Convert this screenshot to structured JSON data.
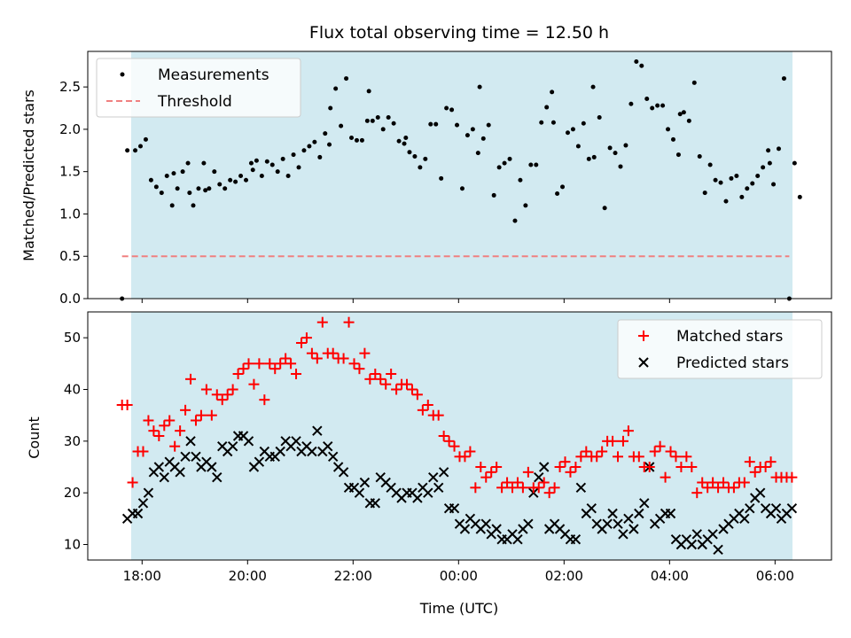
{
  "chart_data": [
    {
      "type": "scatter",
      "title": "Flux total observing time = 12.50 h",
      "xlabel": "",
      "ylabel": "Matched/Predicted stars",
      "x_unit": "hours since 2024-01-01 00:00 UTC",
      "ylim": [
        0,
        2.92
      ],
      "y_ticks": [
        "0.0",
        "0.5",
        "1.0",
        "1.5",
        "2.0",
        "2.5"
      ],
      "shaded_span": {
        "start": "17:45",
        "end": "06:15",
        "color": "#add8e6"
      },
      "legend": {
        "position": "top-left",
        "entries": [
          "Measurements",
          "Threshold"
        ]
      },
      "series": [
        {
          "name": "Measurements",
          "color": "#000000",
          "x": [
            17.62,
            17.72,
            17.87,
            17.97,
            18.07,
            18.17,
            18.27,
            18.37,
            18.47,
            18.57,
            18.67,
            18.77,
            18.87,
            18.97,
            19.07,
            19.17,
            19.27,
            19.37,
            19.47,
            19.57,
            19.67,
            19.77,
            19.87,
            19.97,
            20.07,
            20.17,
            20.27,
            20.37,
            20.47,
            20.57,
            20.67,
            20.77,
            20.87,
            20.97,
            21.07,
            21.17,
            21.27,
            21.37,
            21.47,
            21.57,
            21.67,
            21.77,
            21.87,
            21.97,
            22.07,
            22.17,
            22.27,
            22.37,
            22.47,
            22.57,
            22.67,
            22.77,
            22.87,
            22.97,
            23.07,
            23.17,
            23.27,
            23.37,
            23.47,
            23.57,
            23.67,
            23.77,
            23.87,
            23.97,
            24.07,
            24.17,
            24.27,
            24.37,
            24.47,
            24.57,
            24.67,
            24.77,
            24.87,
            24.97,
            25.07,
            25.17,
            25.27,
            25.37,
            25.47,
            25.57,
            25.67,
            25.77,
            25.87,
            25.97,
            26.07,
            26.17,
            26.27,
            26.37,
            26.47,
            26.57,
            26.67,
            26.77,
            26.87,
            26.97,
            27.07,
            27.17,
            27.27,
            27.37,
            27.47,
            27.57,
            27.67,
            27.77,
            27.87,
            27.97,
            28.07,
            28.17,
            28.27,
            28.37,
            28.47,
            28.57,
            28.67,
            28.77,
            28.87,
            28.97,
            29.07,
            29.17,
            29.27,
            29.37,
            29.47,
            29.57,
            29.67,
            29.77,
            29.87,
            29.97,
            30.07,
            30.17,
            30.27,
            30.37,
            30.47
          ],
          "y": [
            0.0,
            1.75,
            1.75,
            1.8,
            1.88,
            1.4,
            1.32,
            1.25,
            1.45,
            1.1,
            1.3,
            1.5,
            1.6,
            1.1,
            1.3,
            1.6,
            1.3,
            1.5,
            1.35,
            1.3,
            1.4,
            1.38,
            1.45,
            1.4,
            1.6,
            1.63,
            1.45,
            1.62,
            1.58,
            1.5,
            1.65,
            1.45,
            1.7,
            1.55,
            1.75,
            1.8,
            1.85,
            1.67,
            1.95,
            2.25,
            2.48,
            2.04,
            2.6,
            1.9,
            1.87,
            1.87,
            2.1,
            2.1,
            2.14,
            2.0,
            2.14,
            2.07,
            1.86,
            1.83,
            1.73,
            1.68,
            1.55,
            1.65,
            2.06,
            2.06,
            1.42,
            2.25,
            2.23,
            2.05,
            1.3,
            1.93,
            2.0,
            1.72,
            1.89,
            2.05,
            1.22,
            1.55,
            1.6,
            1.65,
            0.92,
            1.4,
            1.1,
            1.58,
            1.58,
            2.08,
            2.26,
            2.44,
            1.24,
            1.32,
            1.96,
            2.0,
            1.8,
            2.07,
            1.65,
            1.67,
            2.14,
            1.07,
            1.78,
            1.72,
            1.56,
            1.81,
            2.3,
            2.8,
            2.75,
            2.36,
            2.25,
            2.28,
            2.28,
            2.0,
            1.88,
            1.7,
            2.2,
            2.1,
            2.55,
            1.68,
            1.25,
            1.58,
            1.4,
            1.37,
            1.15,
            1.42,
            1.45,
            1.2,
            1.3,
            1.36,
            1.45,
            1.55,
            1.75,
            1.35,
            1.77,
            2.6,
            0.0,
            1.6,
            1.2
          ],
          "extra_points": [
            {
              "x": 18.6,
              "y": 1.48
            },
            {
              "x": 18.9,
              "y": 1.25
            },
            {
              "x": 19.2,
              "y": 1.28
            },
            {
              "x": 20.1,
              "y": 1.52
            },
            {
              "x": 21.55,
              "y": 1.82
            },
            {
              "x": 22.3,
              "y": 2.45
            },
            {
              "x": 23.0,
              "y": 1.9
            },
            {
              "x": 24.4,
              "y": 2.5
            },
            {
              "x": 25.8,
              "y": 2.08
            },
            {
              "x": 26.55,
              "y": 2.5
            },
            {
              "x": 28.2,
              "y": 2.18
            },
            {
              "x": 29.9,
              "y": 1.6
            }
          ]
        },
        {
          "name": "Threshold",
          "color": "#f08080",
          "style": "dashed",
          "x": [
            17.62,
            30.27
          ],
          "y": [
            0.5,
            0.5
          ]
        }
      ]
    },
    {
      "type": "scatter",
      "title": "",
      "xlabel": "Time (UTC)",
      "ylabel": "Count",
      "x_unit": "hours since 2024-01-01 00:00 UTC",
      "xlim": [
        16.97,
        31.07
      ],
      "x_ticks": [
        {
          "x": 18,
          "label": "18:00"
        },
        {
          "x": 20,
          "label": "20:00"
        },
        {
          "x": 22,
          "label": "22:00"
        },
        {
          "x": 24,
          "label": "00:00"
        },
        {
          "x": 26,
          "label": "02:00"
        },
        {
          "x": 28,
          "label": "04:00"
        },
        {
          "x": 30,
          "label": "06:00"
        }
      ],
      "ylim": [
        7,
        55
      ],
      "y_ticks": [
        "10",
        "20",
        "30",
        "40",
        "50"
      ],
      "shaded_span": {
        "start": "17:45",
        "end": "06:15",
        "color": "#add8e6"
      },
      "legend": {
        "position": "top-right",
        "entries": [
          "Matched stars",
          "Predicted stars"
        ]
      },
      "series": [
        {
          "name": "Matched stars",
          "color": "#ff0000",
          "marker": "+",
          "x": [
            17.62,
            17.72,
            17.82,
            17.92,
            18.02,
            18.12,
            18.22,
            18.32,
            18.42,
            18.52,
            18.62,
            18.72,
            18.82,
            18.92,
            19.02,
            19.12,
            19.22,
            19.32,
            19.42,
            19.52,
            19.62,
            19.72,
            19.82,
            19.92,
            20.02,
            20.12,
            20.22,
            20.32,
            20.42,
            20.52,
            20.62,
            20.72,
            20.82,
            20.92,
            21.02,
            21.12,
            21.22,
            21.32,
            21.42,
            21.52,
            21.62,
            21.72,
            21.82,
            21.92,
            22.02,
            22.12,
            22.22,
            22.32,
            22.42,
            22.52,
            22.62,
            22.72,
            22.82,
            22.92,
            23.02,
            23.12,
            23.22,
            23.32,
            23.42,
            23.52,
            23.62,
            23.72,
            23.82,
            23.92,
            24.02,
            24.12,
            24.22,
            24.32,
            24.42,
            24.52,
            24.62,
            24.72,
            24.82,
            24.92,
            25.02,
            25.12,
            25.22,
            25.32,
            25.42,
            25.52,
            25.62,
            25.72,
            25.82,
            25.92,
            26.02,
            26.12,
            26.22,
            26.32,
            26.42,
            26.52,
            26.62,
            26.72,
            26.82,
            26.92,
            27.02,
            27.12,
            27.22,
            27.32,
            27.42,
            27.52,
            27.62,
            27.72,
            27.82,
            27.92,
            28.02,
            28.12,
            28.22,
            28.32,
            28.42,
            28.52,
            28.62,
            28.72,
            28.82,
            28.92,
            29.02,
            29.12,
            29.22,
            29.32,
            29.42,
            29.52,
            29.62,
            29.72,
            29.82,
            29.92,
            30.02,
            30.12,
            30.22,
            30.32
          ],
          "y": [
            37,
            37,
            22,
            28,
            28,
            34,
            32,
            31,
            33,
            34,
            29,
            32,
            36,
            42,
            34,
            35,
            40,
            35,
            39,
            38,
            39,
            40,
            43,
            44,
            45,
            41,
            45,
            38,
            45,
            44,
            45,
            46,
            45,
            43,
            49,
            50,
            47,
            46,
            53,
            47,
            47,
            46,
            46,
            53,
            45,
            44,
            47,
            42,
            43,
            42,
            41,
            43,
            40,
            41,
            41,
            40,
            39,
            36,
            37,
            35,
            35,
            31,
            30,
            29,
            27,
            27,
            28,
            21,
            25,
            23,
            24,
            25,
            21,
            22,
            21,
            22,
            21,
            24,
            21,
            21,
            22,
            20,
            21,
            25,
            26,
            24,
            25,
            27,
            28,
            27,
            27,
            28,
            30,
            30,
            27,
            30,
            32,
            27,
            27,
            25,
            25,
            28,
            29,
            23,
            28,
            27,
            25,
            27,
            25,
            20,
            22,
            21,
            22,
            21,
            22,
            21,
            21,
            22,
            22,
            26,
            24,
            25,
            25,
            26,
            23,
            23,
            23,
            23
          ]
        },
        {
          "name": "Predicted stars",
          "color": "#000000",
          "marker": "x",
          "x": [
            17.72,
            17.82,
            17.92,
            18.02,
            18.12,
            18.22,
            18.32,
            18.42,
            18.52,
            18.62,
            18.72,
            18.82,
            18.92,
            19.02,
            19.12,
            19.22,
            19.32,
            19.42,
            19.52,
            19.62,
            19.72,
            19.82,
            19.92,
            20.02,
            20.12,
            20.22,
            20.32,
            20.42,
            20.52,
            20.62,
            20.72,
            20.82,
            20.92,
            21.02,
            21.12,
            21.22,
            21.32,
            21.42,
            21.52,
            21.62,
            21.72,
            21.82,
            21.92,
            22.02,
            22.12,
            22.22,
            22.32,
            22.42,
            22.52,
            22.62,
            22.72,
            22.82,
            22.92,
            23.02,
            23.12,
            23.22,
            23.32,
            23.42,
            23.52,
            23.62,
            23.72,
            23.82,
            23.92,
            24.02,
            24.12,
            24.22,
            24.32,
            24.42,
            24.52,
            24.62,
            24.72,
            24.82,
            24.92,
            25.02,
            25.12,
            25.22,
            25.32,
            25.42,
            25.52,
            25.62,
            25.72,
            25.82,
            25.92,
            26.02,
            26.12,
            26.22,
            26.32,
            26.42,
            26.52,
            26.62,
            26.72,
            26.82,
            26.92,
            27.02,
            27.12,
            27.22,
            27.32,
            27.42,
            27.52,
            27.62,
            27.72,
            27.82,
            27.92,
            28.02,
            28.12,
            28.22,
            28.32,
            28.42,
            28.52,
            28.62,
            28.72,
            28.82,
            28.92,
            29.02,
            29.12,
            29.22,
            29.32,
            29.42,
            29.52,
            29.62,
            29.72,
            29.82,
            29.92,
            30.02,
            30.12,
            30.22,
            30.32
          ],
          "y": [
            15,
            16,
            16,
            18,
            20,
            24,
            25,
            23,
            26,
            25,
            24,
            27,
            30,
            27,
            25,
            26,
            25,
            23,
            29,
            28,
            29,
            31,
            31,
            30,
            25,
            26,
            28,
            27,
            27,
            28,
            30,
            29,
            30,
            28,
            29,
            28,
            32,
            28,
            29,
            27,
            25,
            24,
            21,
            21,
            20,
            22,
            18,
            18,
            23,
            22,
            21,
            20,
            19,
            20,
            20,
            19,
            21,
            20,
            23,
            21,
            24,
            17,
            17,
            14,
            13,
            15,
            14,
            13,
            14,
            12,
            13,
            11,
            11,
            12,
            11,
            13,
            14,
            20,
            23,
            25,
            13,
            14,
            13,
            12,
            11,
            11,
            21,
            16,
            17,
            14,
            13,
            14,
            16,
            14,
            12,
            15,
            13,
            16,
            18,
            25,
            14,
            15,
            16,
            16,
            11,
            10,
            11,
            10,
            12,
            10,
            11,
            12,
            9,
            13,
            14,
            15,
            16,
            15,
            17,
            19,
            20,
            17,
            16,
            17,
            15,
            16,
            17
          ]
        }
      ]
    }
  ]
}
